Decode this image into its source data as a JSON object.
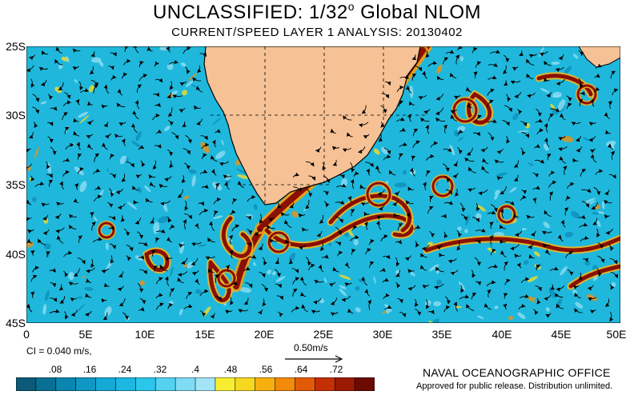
{
  "header": {
    "title": "UNCLASSIFIED: 1/32",
    "title_sup": "o",
    "title_end": " Global NLOM",
    "subtitle": "CURRENT/SPEED LAYER 1 ANALYSIS: 20130402"
  },
  "map": {
    "lat_labels": [
      "25S",
      "30S",
      "35S",
      "40S",
      "45S"
    ],
    "lon_labels": [
      "0",
      "5E",
      "10E",
      "15E",
      "20E",
      "25E",
      "30E",
      "35E",
      "40E",
      "45E",
      "50E"
    ],
    "lat_range": [
      -45,
      -25
    ],
    "lon_range": [
      0,
      50
    ],
    "ocean_color": "#1fb8dc",
    "land_color": "#f5c195",
    "current_color": "#7a0a00"
  },
  "contour_interval": "CI = 0.040 m/s,",
  "scale_arrow_label": "0.50m/s",
  "colorbar": {
    "labels": [
      ".08",
      ".16",
      ".24",
      ".32",
      ".4",
      ".48",
      ".56",
      ".64",
      ".72"
    ],
    "colors": [
      "#0a5a78",
      "#0a6f94",
      "#0a86b0",
      "#1097c4",
      "#15a9d6",
      "#1cb8e2",
      "#2cc6ec",
      "#55d2f2",
      "#7fdcf5",
      "#a3e4f7",
      "#f7ee30",
      "#f7d820",
      "#f7b010",
      "#f28a0a",
      "#e35a06",
      "#c43004",
      "#9a1a02",
      "#6a0a00"
    ]
  },
  "footer": {
    "office": "NAVAL OCEANOGRAPHIC OFFICE",
    "release": "Approved for public release. Distribution unlimited."
  }
}
